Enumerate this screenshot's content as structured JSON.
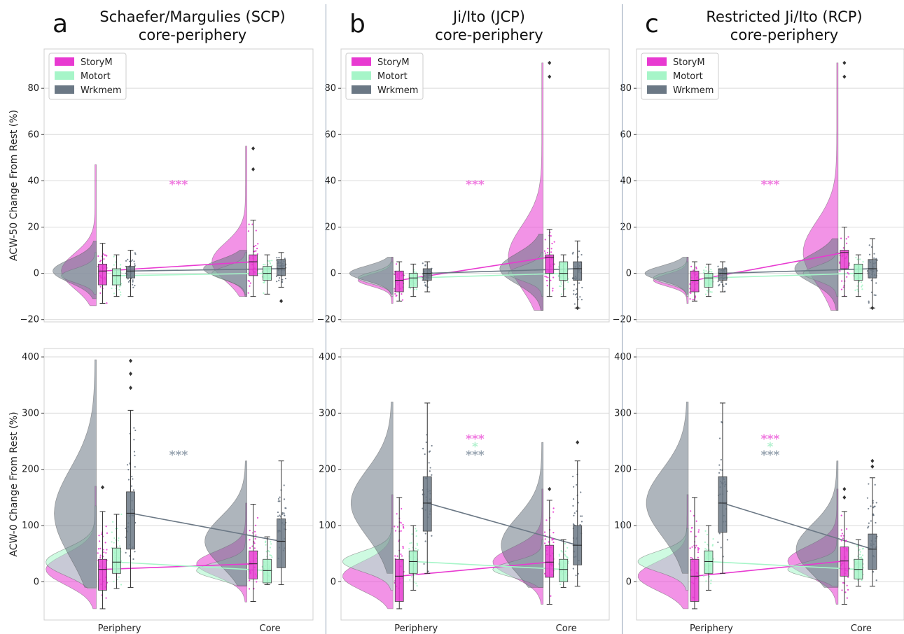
{
  "colors": {
    "StoryM": "#e83ad1",
    "Motort": "#a6f5c8",
    "Wrkmem": "#6b7885",
    "sig_storym": "#f07be0",
    "sig_motort": "#b3f1cf",
    "sig_wrkmem": "#9aa6b2",
    "grid": "#d9d9d9",
    "divider": "#8fa0b5"
  },
  "panels": [
    {
      "letter": "a",
      "title_line1": "Schaefer/Margulies (SCP)",
      "title_line2": "core-periphery"
    },
    {
      "letter": "b",
      "title_line1": "Ji/Ito (JCP)",
      "title_line2": "core-periphery"
    },
    {
      "letter": "c",
      "title_line1": "Restricted Ji/Ito (RCP)",
      "title_line2": "core-periphery"
    }
  ],
  "legend": [
    "StoryM",
    "Motort",
    "Wrkmem"
  ],
  "chart_data": [
    {
      "type": "box",
      "panel": "a",
      "row": "top",
      "ylabel": "ACW-50 Change From Rest (%)",
      "ylim": [
        -21,
        97
      ],
      "yticks": [
        -20,
        0,
        20,
        40,
        60,
        80
      ],
      "categories": [
        "Periphery",
        "Core"
      ],
      "series": [
        {
          "name": "StoryM",
          "median": [
            1,
            5
          ],
          "q1": [
            -5,
            -1
          ],
          "q3": [
            4,
            8
          ],
          "wlow": [
            -13,
            -10
          ],
          "whigh": [
            13,
            23
          ],
          "outliers": [
            [],
            [
              45,
              54
            ]
          ],
          "violin_min": [
            -14,
            -10
          ],
          "violin_max": [
            47,
            55
          ]
        },
        {
          "name": "Motort",
          "median": [
            -1,
            0
          ],
          "q1": [
            -5,
            -3
          ],
          "q3": [
            2,
            3
          ],
          "wlow": [
            -10,
            -9
          ],
          "whigh": [
            8,
            8
          ],
          "outliers": [
            [],
            []
          ],
          "violin_min": [
            -9,
            -9
          ],
          "violin_max": [
            9,
            9
          ]
        },
        {
          "name": "Wrkmem",
          "median": [
            1,
            2
          ],
          "q1": [
            -2,
            -1
          ],
          "q3": [
            3,
            6
          ],
          "wlow": [
            -10,
            -6
          ],
          "whigh": [
            10,
            9
          ],
          "outliers": [
            [],
            [
              -12
            ]
          ],
          "violin_min": [
            -11,
            -10
          ],
          "violin_max": [
            14,
            10
          ]
        }
      ],
      "significance": [
        {
          "text": "***",
          "series": "StoryM",
          "y": 39
        }
      ]
    },
    {
      "type": "box",
      "panel": "b",
      "row": "top",
      "ylabel": "ACW-50 Change From Rest (%)",
      "ylim": [
        -21,
        97
      ],
      "yticks": [
        -20,
        0,
        20,
        40,
        60,
        80
      ],
      "categories": [
        "Periphery",
        "Core"
      ],
      "series": [
        {
          "name": "StoryM",
          "median": [
            -3,
            7
          ],
          "q1": [
            -8,
            0
          ],
          "q3": [
            1,
            8
          ],
          "wlow": [
            -12,
            -10
          ],
          "whigh": [
            5,
            19
          ],
          "outliers": [
            [],
            [
              85,
              91
            ]
          ],
          "violin_min": [
            -13,
            -16
          ],
          "violin_max": [
            7,
            91
          ]
        },
        {
          "name": "Motort",
          "median": [
            -2,
            0
          ],
          "q1": [
            -6,
            -3
          ],
          "q3": [
            0,
            5
          ],
          "wlow": [
            -10,
            -10
          ],
          "whigh": [
            4,
            8
          ],
          "outliers": [
            [],
            []
          ],
          "violin_min": [
            -10,
            -10
          ],
          "violin_max": [
            5,
            9
          ]
        },
        {
          "name": "Wrkmem",
          "median": [
            0,
            2
          ],
          "q1": [
            -3,
            -3
          ],
          "q3": [
            2,
            5
          ],
          "wlow": [
            -8,
            -15
          ],
          "whigh": [
            5,
            14
          ],
          "outliers": [
            [],
            [
              -15
            ]
          ],
          "violin_min": [
            -9,
            -16
          ],
          "violin_max": [
            7,
            17
          ]
        }
      ],
      "significance": [
        {
          "text": "***",
          "series": "StoryM",
          "y": 39
        }
      ]
    },
    {
      "type": "box",
      "panel": "c",
      "row": "top",
      "ylabel": "ACW-50 Change From Rest (%)",
      "ylim": [
        -21,
        97
      ],
      "yticks": [
        -20,
        0,
        20,
        40,
        60,
        80
      ],
      "categories": [
        "Periphery",
        "Core"
      ],
      "series": [
        {
          "name": "StoryM",
          "median": [
            -3,
            9
          ],
          "q1": [
            -8,
            2
          ],
          "q3": [
            1,
            10
          ],
          "wlow": [
            -12,
            -10
          ],
          "whigh": [
            5,
            20
          ],
          "outliers": [
            [],
            [
              85,
              91
            ]
          ],
          "violin_min": [
            -13,
            -16
          ],
          "violin_max": [
            7,
            91
          ]
        },
        {
          "name": "Motort",
          "median": [
            -2,
            0
          ],
          "q1": [
            -6,
            -3
          ],
          "q3": [
            0,
            4
          ],
          "wlow": [
            -10,
            -10
          ],
          "whigh": [
            4,
            8
          ],
          "outliers": [
            [],
            []
          ],
          "violin_min": [
            -10,
            -10
          ],
          "violin_max": [
            5,
            9
          ]
        },
        {
          "name": "Wrkmem",
          "median": [
            0,
            2
          ],
          "q1": [
            -3,
            -2
          ],
          "q3": [
            2,
            6
          ],
          "wlow": [
            -8,
            -15
          ],
          "whigh": [
            5,
            15
          ],
          "outliers": [
            [],
            [
              -15
            ]
          ],
          "violin_min": [
            -9,
            -16
          ],
          "violin_max": [
            7,
            15
          ]
        }
      ],
      "significance": [
        {
          "text": "***",
          "series": "StoryM",
          "y": 39
        }
      ]
    },
    {
      "type": "box",
      "panel": "a",
      "row": "bottom",
      "ylabel": "ACW-0 Change From Rest (%)",
      "ylim": [
        -68,
        415
      ],
      "yticks": [
        0,
        100,
        200,
        300,
        400
      ],
      "categories": [
        "Periphery",
        "Core"
      ],
      "series": [
        {
          "name": "StoryM",
          "median": [
            22,
            32
          ],
          "q1": [
            -15,
            5
          ],
          "q3": [
            40,
            55
          ],
          "wlow": [
            -48,
            -35
          ],
          "whigh": [
            125,
            138
          ],
          "outliers": [
            [
              168
            ],
            []
          ],
          "violin_min": [
            -48,
            -36
          ],
          "violin_max": [
            170,
            140
          ]
        },
        {
          "name": "Motort",
          "median": [
            35,
            20
          ],
          "q1": [
            15,
            -2
          ],
          "q3": [
            60,
            40
          ],
          "wlow": [
            -12,
            -5
          ],
          "whigh": [
            120,
            80
          ],
          "outliers": [
            [],
            []
          ],
          "violin_min": [
            -12,
            -6
          ],
          "violin_max": [
            135,
            85
          ]
        },
        {
          "name": "Wrkmem",
          "median": [
            122,
            72
          ],
          "q1": [
            58,
            25
          ],
          "q3": [
            160,
            112
          ],
          "wlow": [
            -10,
            -5
          ],
          "whigh": [
            305,
            215
          ],
          "outliers": [
            [
              345,
              370,
              393
            ],
            []
          ],
          "violin_min": [
            -10,
            -8
          ],
          "violin_max": [
            395,
            215
          ]
        }
      ],
      "significance": [
        {
          "text": "***",
          "series": "Wrkmem",
          "y": 228
        }
      ]
    },
    {
      "type": "box",
      "panel": "b",
      "row": "bottom",
      "ylabel": "ACW-0 Change From Rest (%)",
      "ylim": [
        -68,
        415
      ],
      "yticks": [
        0,
        100,
        200,
        300,
        400
      ],
      "categories": [
        "Periphery",
        "Core"
      ],
      "series": [
        {
          "name": "StoryM",
          "median": [
            10,
            35
          ],
          "q1": [
            -35,
            8
          ],
          "q3": [
            40,
            65
          ],
          "wlow": [
            -48,
            -40
          ],
          "whigh": [
            150,
            145
          ],
          "outliers": [
            [],
            [
              165
            ]
          ],
          "violin_min": [
            -48,
            -40
          ],
          "violin_max": [
            155,
            165
          ]
        },
        {
          "name": "Motort",
          "median": [
            36,
            22
          ],
          "q1": [
            15,
            0
          ],
          "q3": [
            55,
            40
          ],
          "wlow": [
            -15,
            -10
          ],
          "whigh": [
            100,
            75
          ],
          "outliers": [
            [],
            []
          ],
          "violin_min": [
            -15,
            -10
          ],
          "violin_max": [
            95,
            75
          ]
        },
        {
          "name": "Wrkmem",
          "median": [
            140,
            65
          ],
          "q1": [
            90,
            30
          ],
          "q3": [
            187,
            100
          ],
          "wlow": [
            15,
            -8
          ],
          "whigh": [
            318,
            215
          ],
          "outliers": [
            [],
            [
              248
            ]
          ],
          "violin_min": [
            15,
            -10
          ],
          "violin_max": [
            320,
            248
          ]
        }
      ],
      "significance": [
        {
          "text": "***",
          "series": "StoryM",
          "y": 257
        },
        {
          "text": "*",
          "series": "Motort",
          "y": 243
        },
        {
          "text": "***",
          "series": "Wrkmem",
          "y": 228
        }
      ]
    },
    {
      "type": "box",
      "panel": "c",
      "row": "bottom",
      "ylabel": "ACW-0 Change From Rest (%)",
      "ylim": [
        -68,
        415
      ],
      "yticks": [
        0,
        100,
        200,
        300,
        400
      ],
      "categories": [
        "Periphery",
        "Core"
      ],
      "series": [
        {
          "name": "StoryM",
          "median": [
            10,
            37
          ],
          "q1": [
            -35,
            10
          ],
          "q3": [
            40,
            62
          ],
          "wlow": [
            -48,
            -40
          ],
          "whigh": [
            150,
            125
          ],
          "outliers": [
            [],
            [
              150,
              165
            ]
          ],
          "violin_min": [
            -48,
            -40
          ],
          "violin_max": [
            155,
            165
          ]
        },
        {
          "name": "Motort",
          "median": [
            36,
            22
          ],
          "q1": [
            15,
            5
          ],
          "q3": [
            55,
            40
          ],
          "wlow": [
            -15,
            -8
          ],
          "whigh": [
            100,
            75
          ],
          "outliers": [
            [],
            []
          ],
          "violin_min": [
            -15,
            -8
          ],
          "violin_max": [
            95,
            75
          ]
        },
        {
          "name": "Wrkmem",
          "median": [
            140,
            58
          ],
          "q1": [
            88,
            22
          ],
          "q3": [
            187,
            85
          ],
          "wlow": [
            15,
            -8
          ],
          "whigh": [
            318,
            185
          ],
          "outliers": [
            [],
            [
              205,
              215
            ]
          ],
          "violin_min": [
            15,
            -10
          ],
          "violin_max": [
            320,
            215
          ]
        }
      ],
      "significance": [
        {
          "text": "***",
          "series": "StoryM",
          "y": 257
        },
        {
          "text": "*",
          "series": "Motort",
          "y": 243
        },
        {
          "text": "***",
          "series": "Wrkmem",
          "y": 228
        }
      ]
    }
  ]
}
